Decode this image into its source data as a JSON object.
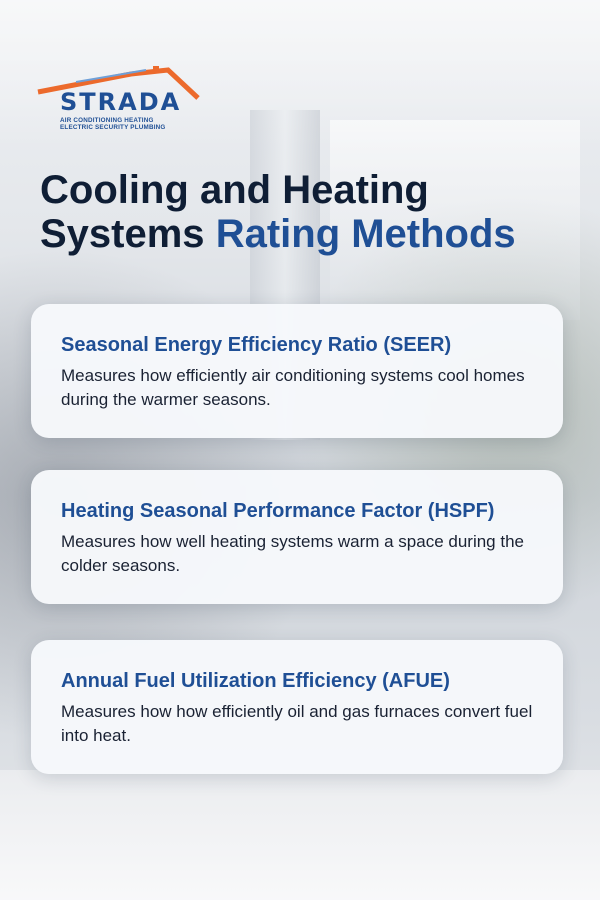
{
  "logo": {
    "brand": "STRADA",
    "tagline_line1": "AIR CONDITIONING HEATING",
    "tagline_line2": "ELECTRIC SECURITY PLUMBING",
    "colors": {
      "brand_blue": "#1f4f95",
      "roof_orange": "#ec6a2c"
    }
  },
  "headline": {
    "line1": "Cooling and Heating",
    "line2_plain": "Systems",
    "line2_accent": "Rating Methods",
    "colors": {
      "dark": "#0f1e35",
      "accent": "#1f4f95"
    }
  },
  "cards": [
    {
      "title": "Seasonal Energy Efficiency Ratio (SEER)",
      "description": "Measures how efficiently air conditioning systems cool homes during the warmer seasons."
    },
    {
      "title": "Heating Seasonal Performance Factor (HSPF)",
      "description": "Measures how well heating systems warm a space during the colder seasons."
    },
    {
      "title": "Annual Fuel Utilization Efficiency (AFUE)",
      "description": "Measures how how efficiently oil and gas furnaces convert fuel into heat."
    }
  ]
}
